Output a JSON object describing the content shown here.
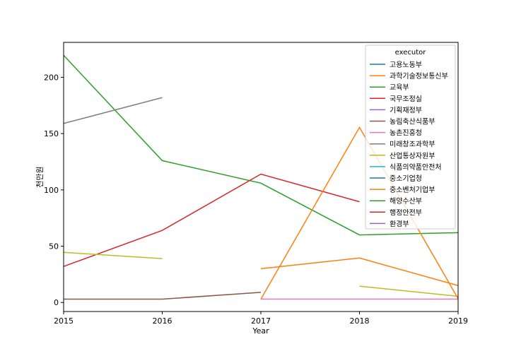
{
  "chart_data": {
    "type": "line",
    "title": "",
    "xlabel": "Year",
    "ylabel": "천만원",
    "xlim": [
      2015,
      2019
    ],
    "ylim": [
      -8,
      231
    ],
    "x_ticks": [
      2015,
      2016,
      2017,
      2018,
      2019
    ],
    "y_ticks": [
      0,
      50,
      100,
      150,
      200
    ],
    "grid": false,
    "legend": {
      "title": "executor",
      "placement": "top-right"
    },
    "series": [
      {
        "name": "고용노동부",
        "color": "#1f77b4",
        "points": []
      },
      {
        "name": "과학기술정보통신부",
        "color": "#ff7f0e",
        "points": [
          [
            2017,
            30
          ],
          [
            2018,
            39.5
          ],
          [
            2019,
            15
          ]
        ]
      },
      {
        "name": "교육부",
        "color": "#2ca02c",
        "points": [
          [
            2015,
            219.5
          ],
          [
            2016,
            126
          ],
          [
            2017,
            106
          ],
          [
            2018,
            60
          ],
          [
            2019,
            62
          ]
        ]
      },
      {
        "name": "국무조정실",
        "color": "#d62728",
        "points": [
          [
            2015,
            32
          ],
          [
            2016,
            64
          ],
          [
            2017,
            114
          ],
          [
            2018,
            89.5
          ]
        ]
      },
      {
        "name": "기획재정부",
        "color": "#9467bd",
        "points": []
      },
      {
        "name": "농림축산식품부",
        "color": "#8c564b",
        "points": [
          [
            2015,
            3
          ],
          [
            2016,
            3
          ],
          [
            2017,
            9
          ]
        ]
      },
      {
        "name": "농촌진흥청",
        "color": "#e377c2",
        "points": [
          [
            2017,
            3
          ],
          [
            2018,
            3
          ],
          [
            2019,
            3
          ]
        ]
      },
      {
        "name": "미래창조과학부",
        "color": "#7f7f7f",
        "points": [
          [
            2015,
            159
          ],
          [
            2016,
            182
          ]
        ]
      },
      {
        "name": "산업통상자원부",
        "color": "#bcbd22",
        "points": [
          [
            2015,
            44.5
          ],
          [
            2016,
            39
          ],
          [
            2018,
            14.5
          ],
          [
            2019,
            5.5
          ]
        ]
      },
      {
        "name": "식품의약품안전처",
        "color": "#17becf",
        "points": []
      },
      {
        "name": "중소기업청",
        "color": "#1f77b4",
        "points": []
      },
      {
        "name": "중소벤처기업부",
        "color": "#ff7f0e",
        "points": [
          [
            2017,
            3
          ],
          [
            2018,
            155.5
          ],
          [
            2019,
            3.5
          ]
        ]
      },
      {
        "name": "해양수산부",
        "color": "#2ca02c",
        "points": []
      },
      {
        "name": "행정안전부",
        "color": "#d62728",
        "points": []
      },
      {
        "name": "환경부",
        "color": "#9467bd",
        "points": []
      }
    ]
  }
}
